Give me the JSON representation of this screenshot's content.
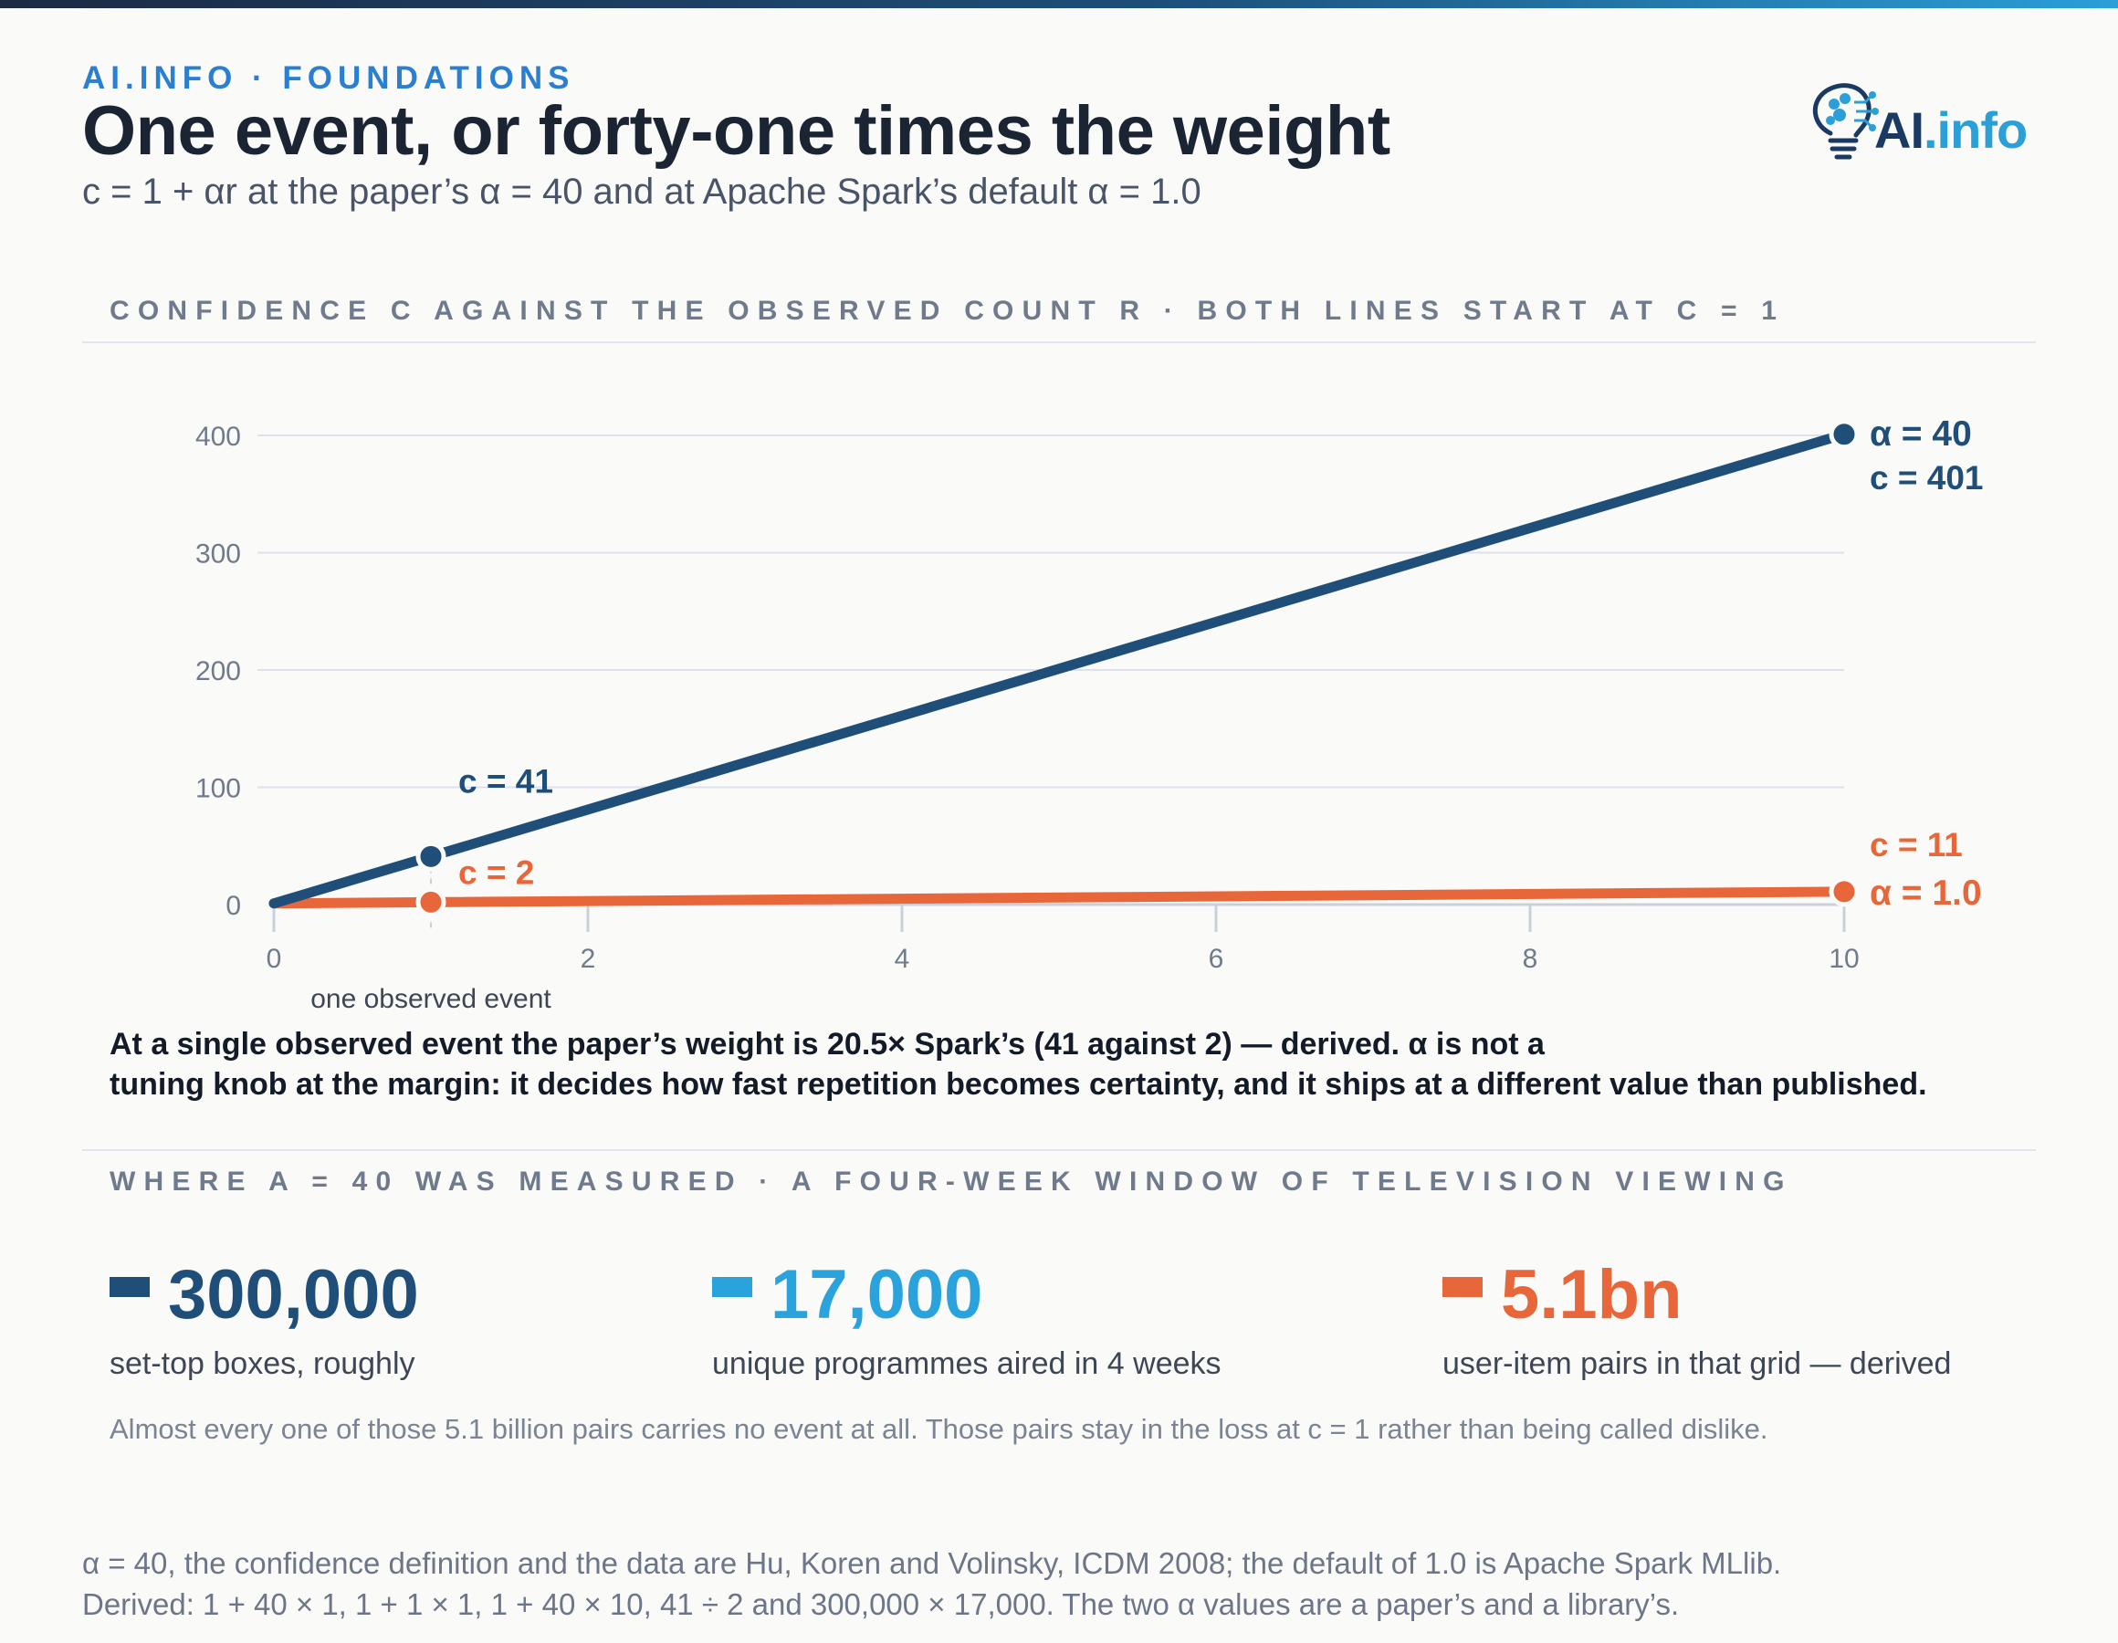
{
  "header": {
    "kicker": "AI.INFO · FOUNDATIONS",
    "title": "One event, or forty-one times the weight",
    "subtitle": "c = 1 + αr at the paper’s α = 40 and at Apache Spark’s default α = 1.0",
    "logo_ai": "AI",
    "logo_info": ".info"
  },
  "chart_section": {
    "label": "CONFIDENCE C AGAINST THE OBSERVED COUNT R · BOTH LINES START AT C = 1"
  },
  "chart_data": {
    "type": "line",
    "x_ticks": [
      "0",
      "2",
      "4",
      "6",
      "8",
      "10"
    ],
    "y_ticks": [
      "0",
      "100",
      "200",
      "300",
      "400"
    ],
    "xlim": [
      0,
      10
    ],
    "ylim": [
      0,
      400
    ],
    "grid": true,
    "x_annotation": "one observed event",
    "series": [
      {
        "name": "α = 40",
        "color": "#1f4e79",
        "points": [
          [
            0,
            1
          ],
          [
            1,
            41
          ],
          [
            10,
            401
          ]
        ],
        "marked_points": [
          [
            1,
            41
          ],
          [
            10,
            401
          ]
        ],
        "labels": {
          "point_1": "c = 41",
          "end_value": "c = 401"
        }
      },
      {
        "name": "α = 1.0",
        "color": "#e8673a",
        "points": [
          [
            0,
            1
          ],
          [
            1,
            2
          ],
          [
            10,
            11
          ]
        ],
        "marked_points": [
          [
            1,
            2
          ],
          [
            10,
            11
          ]
        ],
        "labels": {
          "point_1": "c = 2",
          "end_value": "c = 11"
        }
      }
    ]
  },
  "takeaway": {
    "line1": "At a single observed event the paper’s weight is 20.5× Spark’s (41 against 2) — derived. α is not a",
    "line2": "tuning knob at the margin: it decides how fast repetition becomes certainty, and it ships at a different value than published."
  },
  "data_section": {
    "label": "WHERE A = 40 WAS MEASURED · A FOUR-WEEK WINDOW OF TELEVISION VIEWING"
  },
  "stats": [
    {
      "value": "300,000",
      "label": "set-top boxes, roughly",
      "color": "#1f4e79"
    },
    {
      "value": "17,000",
      "label": "unique programmes aired in 4 weeks",
      "color": "#2aa3dc"
    },
    {
      "value": "5.1bn",
      "label": "user-item pairs in that grid — derived",
      "color": "#e8673a"
    }
  ],
  "note": "Almost every one of those 5.1 billion pairs carries no event at all. Those pairs stay in the loss at c = 1 rather than being called dislike.",
  "footer": {
    "line1": "α = 40, the confidence definition and the data are Hu, Koren and Volinsky, ICDM 2008; the default of 1.0 is Apache Spark MLlib.",
    "line2": "Derived: 1 + 40 × 1, 1 + 1 × 1, 1 + 40 × 10, 41 ÷ 2 and 300,000 × 17,000. The two α values are a paper’s and a library’s."
  }
}
